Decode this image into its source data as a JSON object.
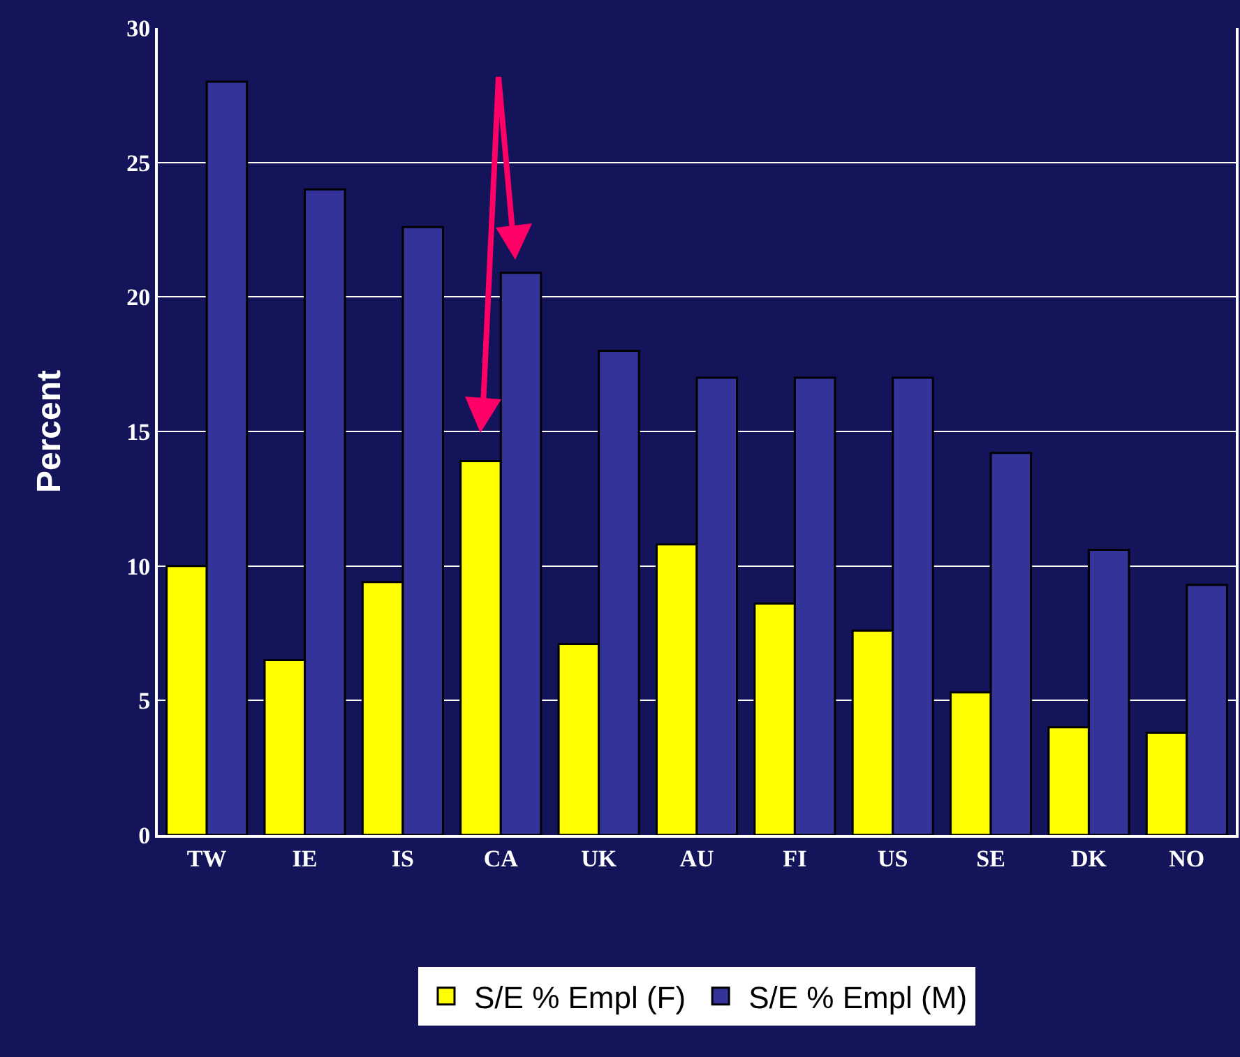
{
  "chart_data": {
    "type": "bar",
    "ylabel": "Percent",
    "categories": [
      "TW",
      "IE",
      "IS",
      "CA",
      "UK",
      "AU",
      "FI",
      "US",
      "SE",
      "DK",
      "NO"
    ],
    "series": [
      {
        "name": "S/E % Empl (F)",
        "color": "#ffff00",
        "values": [
          10,
          6.5,
          9.4,
          13.9,
          7.1,
          10.8,
          8.6,
          7.6,
          5.3,
          4.0,
          3.8
        ]
      },
      {
        "name": "S/E % Empl (M)",
        "color": "#333399",
        "values": [
          28,
          24,
          22.6,
          20.9,
          18,
          17,
          17,
          17,
          14.2,
          10.6,
          9.3
        ]
      }
    ],
    "ylim": [
      0,
      30
    ],
    "yticks": [
      0,
      5,
      10,
      15,
      20,
      25,
      30
    ],
    "grid": "y",
    "legend": "bottom"
  }
}
